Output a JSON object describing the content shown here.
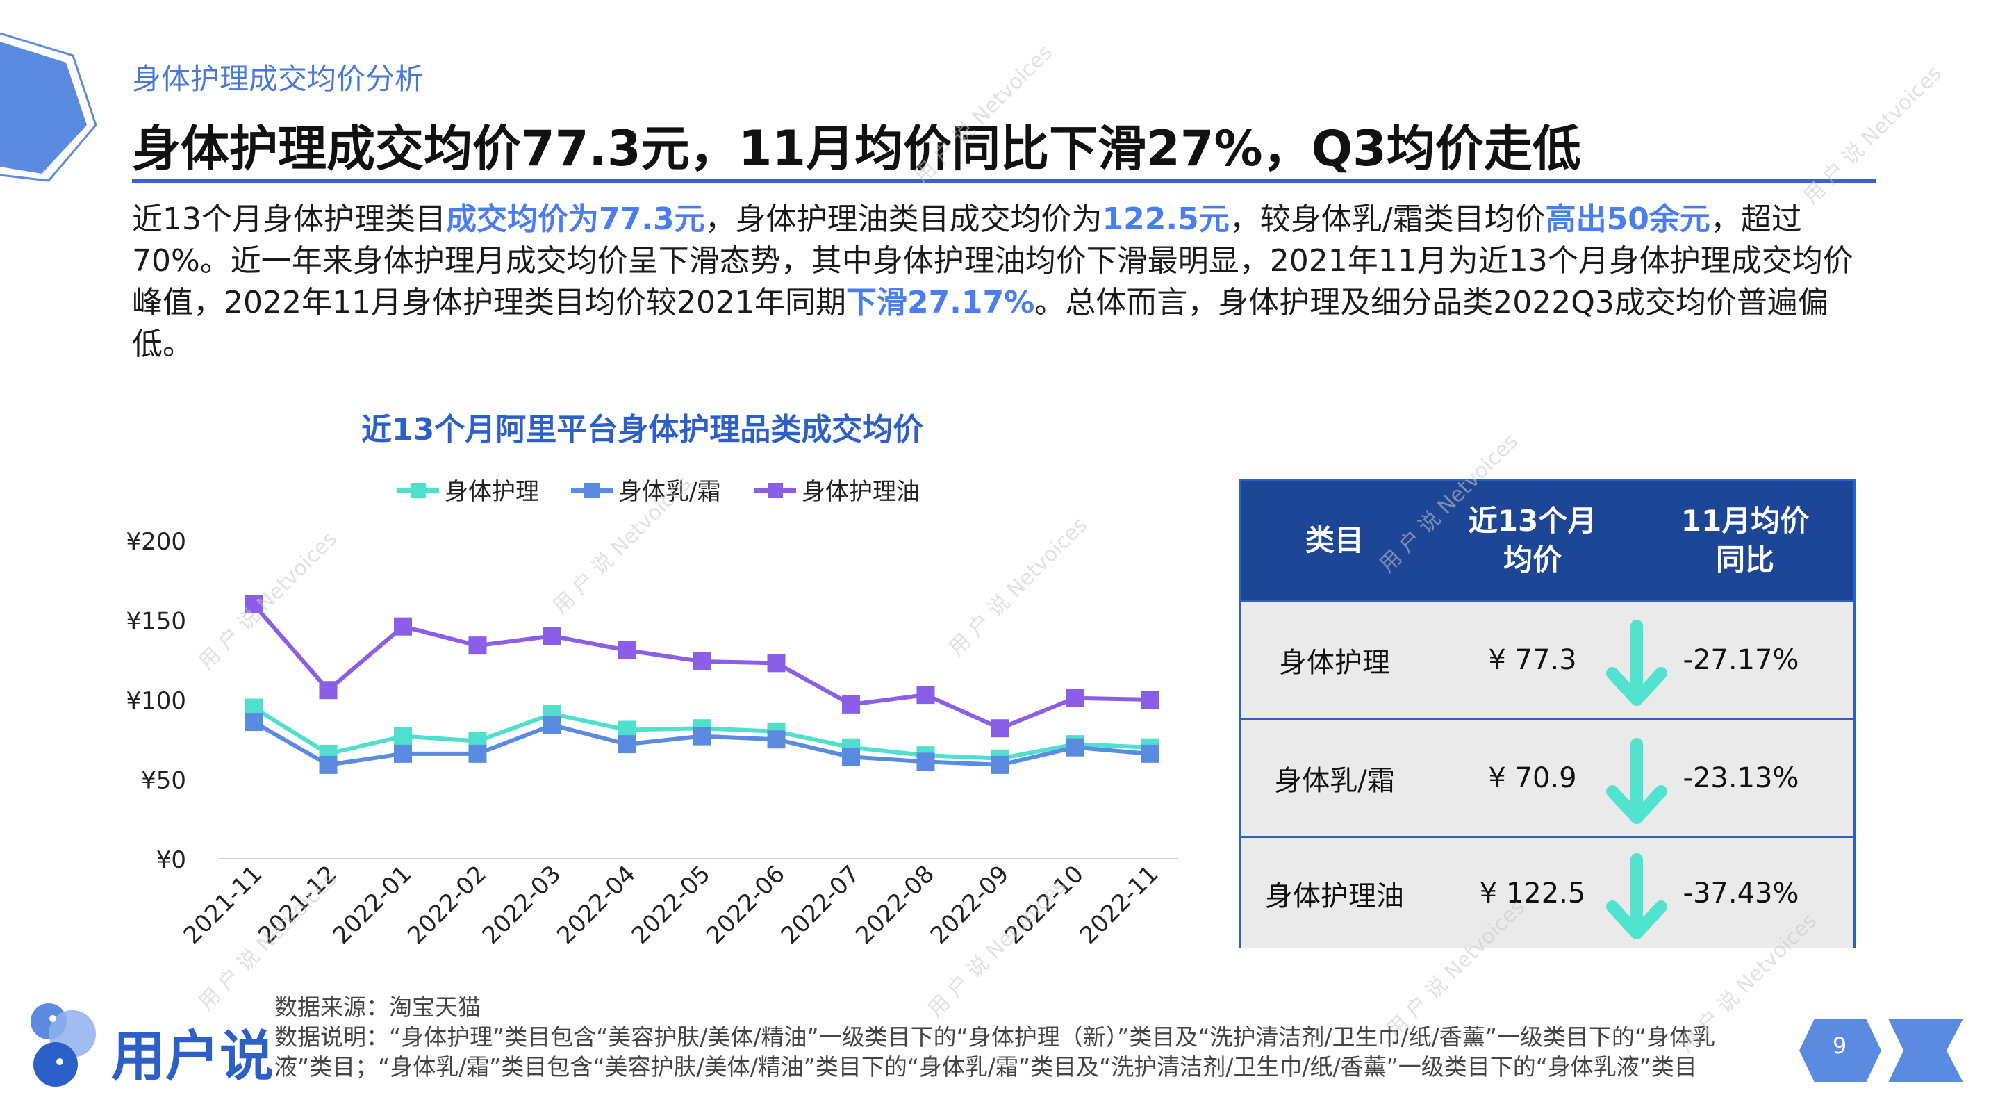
{
  "header": {
    "section_label": "身体护理成交均价分析",
    "headline": "身体护理成交均价77.3元，11月均价同比下滑27%，Q3均价走低"
  },
  "intro": {
    "p1": "近13个月身体护理类目",
    "h1": "成交均价为77.3元",
    "p2": "，身体护理油类目成交均价为",
    "h2": "122.5元",
    "p3": "，较身体乳/霜类目均价",
    "h3": "高出50余元",
    "p4": "，超过70%。近一年来身体护理月成交均价呈下滑态势，其中身体护理油均价下滑最明显，2021年11月为近13个月身体护理成交均价峰值，2022年11月身体护理类目均价较2021年同期",
    "h4": "下滑27.17%",
    "p5": "。总体而言，身体护理及细分品类2022Q3成交均价普遍偏低。"
  },
  "chart_data": {
    "type": "line",
    "title": "近13个月阿里平台身体护理品类成交均价",
    "categories": [
      "2021-11",
      "2021-12",
      "2022-01",
      "2022-02",
      "2022-03",
      "2022-04",
      "2022-05",
      "2022-06",
      "2022-07",
      "2022-08",
      "2022-09",
      "2022-10",
      "2022-11"
    ],
    "series": [
      {
        "name": "身体护理",
        "color": "#4ee0cc",
        "values": [
          95,
          66,
          77,
          74,
          91,
          81,
          82,
          80,
          70,
          65,
          63,
          72,
          70
        ]
      },
      {
        "name": "身体乳/霜",
        "color": "#5b8be0",
        "values": [
          86,
          59,
          66,
          66,
          84,
          72,
          77,
          75,
          64,
          61,
          59,
          70,
          66
        ]
      },
      {
        "name": "身体护理油",
        "color": "#8a5ee6",
        "values": [
          160,
          106,
          146,
          134,
          140,
          131,
          124,
          123,
          97,
          103,
          82,
          101,
          100
        ]
      }
    ],
    "y_ticks": [
      "¥0",
      "¥50",
      "¥100",
      "¥150",
      "¥200"
    ],
    "ylim": [
      0,
      200
    ],
    "legend_position": "top",
    "grid": false
  },
  "table": {
    "headers": [
      "类目",
      "近13个月\n均价",
      "11月均价\n同比"
    ],
    "rows": [
      {
        "category": "身体护理",
        "price": "¥ 77.3",
        "change": "-27.17%"
      },
      {
        "category": "身体乳/霜",
        "price": "¥ 70.9",
        "change": "-23.13%"
      },
      {
        "category": "身体护理油",
        "price": "¥ 122.5",
        "change": "-37.43%"
      }
    ],
    "arrow_color": "#52e3cf"
  },
  "source": {
    "line1": "数据来源：淘宝天猫",
    "line2": "数据说明：“身体护理”类目包含“美容护肤/美体/精油”一级类目下的“身体护理（新）”类目及“洗护清洁剂/卫生巾/纸/香薰”一级类目下的“身体乳液”类目；“身体乳/霜”类目包含“美容护肤/美体/精油”类目下的“身体乳/霜”类目及“洗护清洁剂/卫生巾/纸/香薰”一级类目下的“身体乳液”类目"
  },
  "footer": {
    "brand": "用户说",
    "page": "9",
    "watermark": "用 户 说 Netvoices"
  }
}
